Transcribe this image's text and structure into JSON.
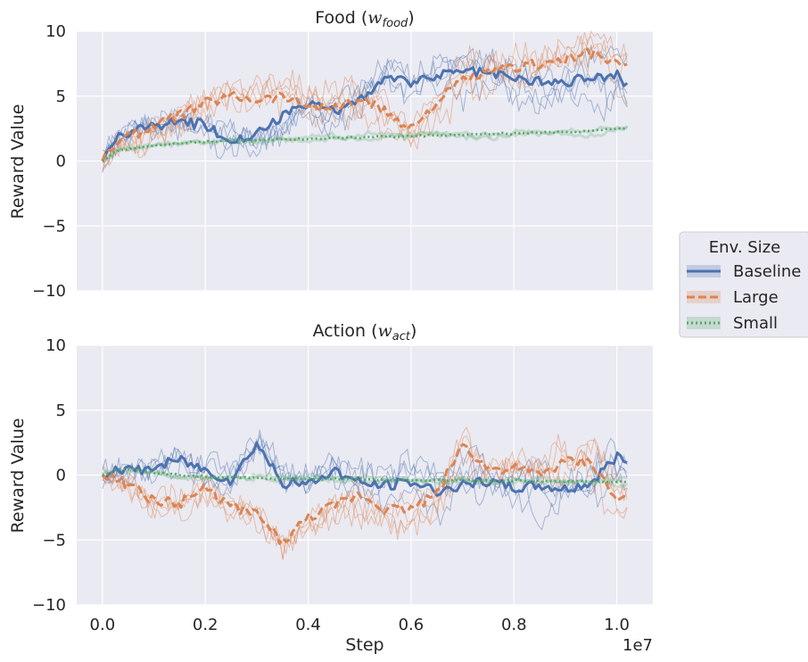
{
  "chart_data": [
    {
      "type": "line",
      "title": "Food (",
      "title_math": "w",
      "title_sub": "food",
      "title_close": ")",
      "xlabel": "",
      "ylabel": "Reward Value",
      "xlim": [
        -0.05,
        1.07
      ],
      "ylim": [
        -10,
        10
      ],
      "yticks": [
        "10",
        "5",
        "0",
        "−5",
        "−10"
      ],
      "ytick_values": [
        10,
        5,
        0,
        -5,
        -10
      ],
      "xtick_values": [
        0.0,
        0.2,
        0.4,
        0.6,
        0.8,
        1.0
      ],
      "grid": true,
      "x": [
        0.0,
        0.03,
        0.06,
        0.1,
        0.15,
        0.2,
        0.25,
        0.3,
        0.35,
        0.4,
        0.45,
        0.5,
        0.55,
        0.6,
        0.65,
        0.7,
        0.75,
        0.8,
        0.85,
        0.9,
        0.95,
        1.0,
        1.02
      ],
      "series": [
        {
          "name": "Baseline",
          "color": "#4c72b0",
          "dash": "solid",
          "values": [
            0.0,
            1.8,
            2.3,
            2.6,
            3.0,
            2.8,
            1.6,
            2.0,
            3.4,
            4.4,
            3.8,
            4.8,
            6.3,
            6.0,
            6.6,
            7.0,
            6.8,
            6.4,
            6.2,
            6.0,
            6.5,
            6.6,
            5.8
          ]
        },
        {
          "name": "Large",
          "color": "#dd8452",
          "dash": "dashed",
          "values": [
            0.0,
            1.6,
            2.0,
            2.8,
            3.5,
            4.5,
            5.0,
            4.8,
            5.0,
            4.3,
            4.0,
            4.8,
            3.8,
            2.5,
            4.5,
            6.2,
            6.8,
            7.2,
            7.5,
            7.8,
            8.3,
            7.5,
            7.2
          ]
        },
        {
          "name": "Small",
          "color": "#55a868",
          "dash": "dotted",
          "values": [
            0.0,
            0.8,
            1.0,
            1.2,
            1.4,
            1.5,
            1.6,
            1.6,
            1.7,
            1.7,
            1.8,
            1.8,
            1.9,
            1.9,
            2.0,
            2.0,
            2.1,
            2.1,
            2.2,
            2.2,
            2.3,
            2.5,
            2.6
          ]
        }
      ]
    },
    {
      "type": "line",
      "title": "Action (",
      "title_math": "w",
      "title_sub": "act",
      "title_close": ")",
      "xlabel": "Step",
      "ylabel": "Reward Value",
      "offset_text": "1e7",
      "xlim": [
        -0.05,
        1.07
      ],
      "ylim": [
        -10,
        10
      ],
      "yticks": [
        "10",
        "5",
        "0",
        "−5",
        "−10"
      ],
      "ytick_values": [
        10,
        5,
        0,
        -5,
        -10
      ],
      "xticks": [
        "0.0",
        "0.2",
        "0.4",
        "0.6",
        "0.8",
        "1.0"
      ],
      "xtick_values": [
        0.0,
        0.2,
        0.4,
        0.6,
        0.8,
        1.0
      ],
      "grid": true,
      "x": [
        0.0,
        0.03,
        0.06,
        0.1,
        0.15,
        0.2,
        0.25,
        0.3,
        0.35,
        0.4,
        0.45,
        0.5,
        0.55,
        0.6,
        0.65,
        0.7,
        0.75,
        0.8,
        0.85,
        0.9,
        0.95,
        1.0,
        1.02
      ],
      "series": [
        {
          "name": "Baseline",
          "color": "#4c72b0",
          "dash": "solid",
          "values": [
            0.0,
            0.6,
            0.3,
            0.6,
            1.2,
            0.4,
            -0.4,
            2.5,
            -0.6,
            -0.7,
            0.4,
            -0.6,
            -0.8,
            -0.5,
            -1.2,
            -0.8,
            -0.5,
            -1.0,
            -0.8,
            -1.1,
            -0.6,
            1.5,
            1.0
          ]
        },
        {
          "name": "Large",
          "color": "#dd8452",
          "dash": "dashed",
          "values": [
            0.0,
            -0.4,
            -1.0,
            -2.0,
            -2.2,
            -1.0,
            -2.4,
            -3.0,
            -5.2,
            -3.3,
            -2.4,
            -1.5,
            -2.6,
            -2.6,
            -1.5,
            2.4,
            0.5,
            0.5,
            0.0,
            1.0,
            1.0,
            -2.0,
            -1.8
          ]
        },
        {
          "name": "Small",
          "color": "#55a868",
          "dash": "dotted",
          "values": [
            0.0,
            0.4,
            0.5,
            0.2,
            0.0,
            -0.1,
            -0.2,
            -0.2,
            -0.3,
            -0.3,
            -0.3,
            -0.3,
            -0.4,
            -0.4,
            -0.4,
            -0.4,
            -0.4,
            -0.4,
            -0.5,
            -0.5,
            -0.5,
            -0.5,
            -0.5
          ]
        }
      ]
    }
  ],
  "legend": {
    "title": "Env. Size",
    "placement": "right",
    "items": [
      {
        "label": "Baseline",
        "color": "#4c72b0",
        "dash": "solid"
      },
      {
        "label": "Large",
        "color": "#dd8452",
        "dash": "dashed"
      },
      {
        "label": "Small",
        "color": "#55a868",
        "dash": "dotted"
      }
    ]
  },
  "colors": {
    "plot_background": "#eaeaf2",
    "grid": "#ffffff"
  }
}
